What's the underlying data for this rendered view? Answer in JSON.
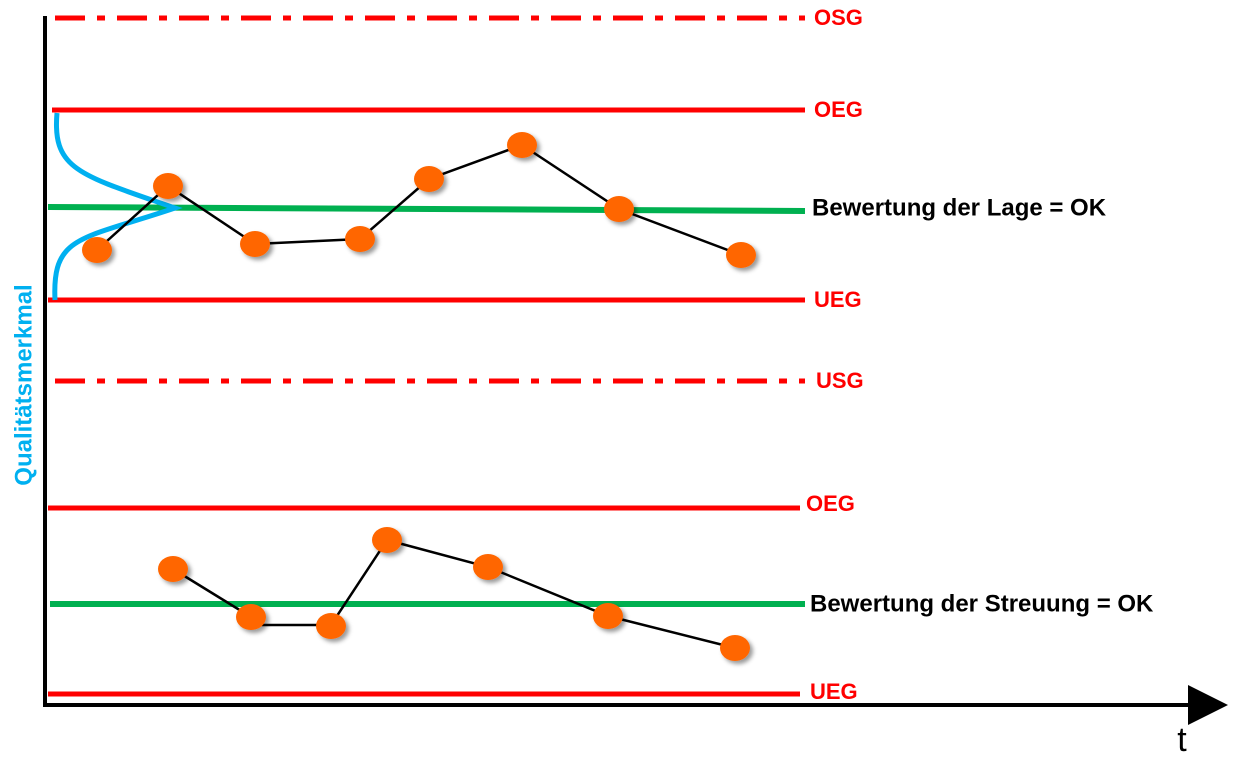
{
  "axes": {
    "y_label": "Qualitätsmerkmal",
    "x_label": "t"
  },
  "location_chart": {
    "upper_spec_limit": "OSG",
    "upper_control_limit": "OEG",
    "assessment": "Bewertung der Lage = OK",
    "lower_control_limit": "UEG"
  },
  "lower_spec_limit": "USG",
  "spread_chart": {
    "upper_control_limit": "OEG",
    "assessment": "Bewertung der Streuung = OK",
    "lower_control_limit": "UEG"
  }
}
